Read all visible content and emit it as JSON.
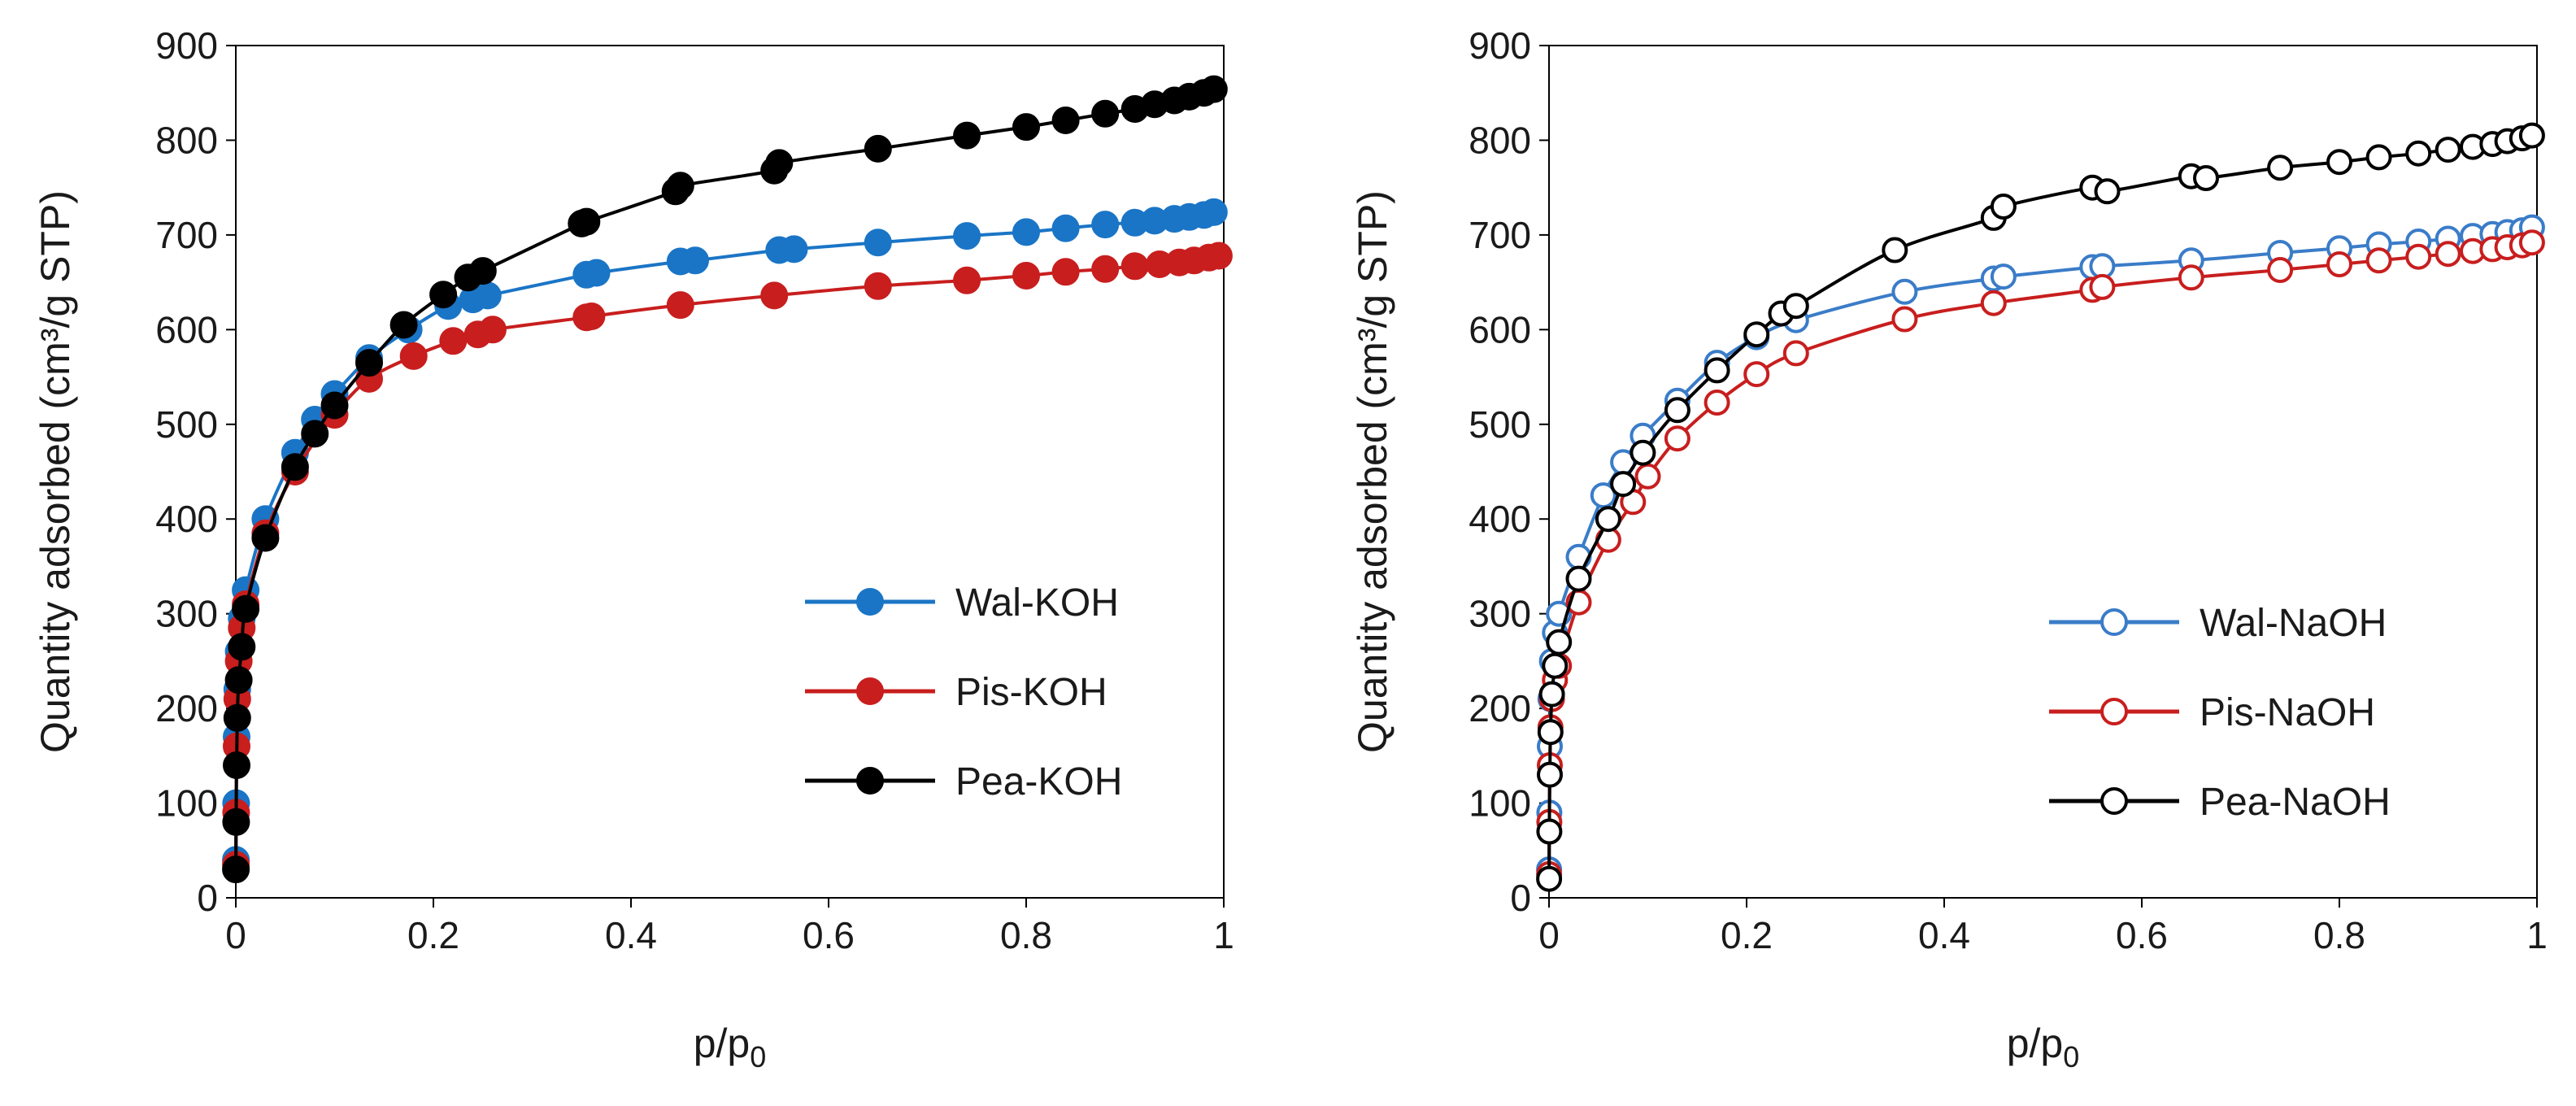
{
  "chart_data": [
    {
      "type": "line",
      "xlabel": "p/p0",
      "ylabel": "Quantity adsorbed (cm³/g STP)",
      "xlim": [
        0,
        1
      ],
      "ylim": [
        0,
        900
      ],
      "xticks": [
        "0",
        "0.2",
        "0.4",
        "0.6",
        "0.8",
        "1"
      ],
      "yticks": [
        "0",
        "100",
        "200",
        "300",
        "400",
        "500",
        "600",
        "700",
        "800",
        "900"
      ],
      "legend_position": "bottom-right",
      "marker": "filled-circle",
      "series": [
        {
          "name": "Wal-KOH",
          "color": "#1a75c6",
          "x": [
            0.0001,
            0.0003,
            0.0008,
            0.0015,
            0.003,
            0.006,
            0.01,
            0.03,
            0.06,
            0.08,
            0.1,
            0.135,
            0.175,
            0.215,
            0.24,
            0.255,
            0.355,
            0.365,
            0.45,
            0.465,
            0.55,
            0.565,
            0.65,
            0.74,
            0.8,
            0.84,
            0.88,
            0.91,
            0.93,
            0.95,
            0.965,
            0.98,
            0.99
          ],
          "y": [
            40,
            100,
            170,
            220,
            260,
            295,
            325,
            400,
            470,
            505,
            532,
            570,
            600,
            625,
            632,
            636,
            658,
            660,
            672,
            673,
            684,
            685,
            692,
            699,
            703,
            707,
            711,
            713,
            715,
            717,
            719,
            721,
            724
          ]
        },
        {
          "name": "Pis-KOH",
          "color": "#c81e1e",
          "x": [
            0.0001,
            0.0003,
            0.0008,
            0.0015,
            0.003,
            0.006,
            0.01,
            0.03,
            0.06,
            0.1,
            0.135,
            0.18,
            0.22,
            0.245,
            0.26,
            0.355,
            0.36,
            0.45,
            0.545,
            0.65,
            0.74,
            0.8,
            0.84,
            0.88,
            0.91,
            0.935,
            0.955,
            0.97,
            0.985,
            0.995
          ],
          "y": [
            35,
            90,
            160,
            210,
            250,
            285,
            310,
            385,
            450,
            510,
            548,
            572,
            588,
            595,
            600,
            613,
            614,
            626,
            636,
            646,
            652,
            657,
            661,
            664,
            667,
            669,
            671,
            673,
            676,
            678
          ]
        },
        {
          "name": "Pea-KOH",
          "color": "#000000",
          "x": [
            0.0001,
            0.0003,
            0.0008,
            0.0015,
            0.003,
            0.006,
            0.01,
            0.03,
            0.06,
            0.08,
            0.1,
            0.135,
            0.17,
            0.21,
            0.235,
            0.25,
            0.35,
            0.355,
            0.445,
            0.45,
            0.545,
            0.55,
            0.65,
            0.74,
            0.8,
            0.84,
            0.88,
            0.91,
            0.93,
            0.95,
            0.965,
            0.98,
            0.99
          ],
          "y": [
            30,
            80,
            140,
            190,
            230,
            265,
            305,
            380,
            455,
            490,
            520,
            565,
            605,
            637,
            655,
            662,
            712,
            714,
            746,
            752,
            768,
            776,
            791,
            805,
            814,
            821,
            828,
            833,
            838,
            842,
            846,
            850,
            854
          ]
        }
      ]
    },
    {
      "type": "line",
      "xlabel": "p/p0",
      "ylabel": "Quantity adsorbed (cm³/g STP)",
      "xlim": [
        0,
        1
      ],
      "ylim": [
        0,
        900
      ],
      "xticks": [
        "0",
        "0.2",
        "0.4",
        "0.6",
        "0.8",
        "1"
      ],
      "yticks": [
        "0",
        "100",
        "200",
        "300",
        "400",
        "500",
        "600",
        "700",
        "800",
        "900"
      ],
      "legend_position": "bottom-right",
      "marker": "open-circle",
      "series": [
        {
          "name": "Wal-NaOH",
          "color": "#3a7cc8",
          "x": [
            0.0001,
            0.0003,
            0.0008,
            0.0015,
            0.003,
            0.006,
            0.01,
            0.03,
            0.055,
            0.075,
            0.095,
            0.13,
            0.17,
            0.21,
            0.25,
            0.36,
            0.45,
            0.46,
            0.55,
            0.56,
            0.65,
            0.74,
            0.8,
            0.84,
            0.88,
            0.91,
            0.935,
            0.955,
            0.97,
            0.985,
            0.995
          ],
          "y": [
            30,
            90,
            160,
            210,
            250,
            280,
            300,
            360,
            425,
            460,
            488,
            525,
            565,
            592,
            610,
            640,
            654,
            656,
            666,
            667,
            673,
            681,
            686,
            690,
            693,
            696,
            699,
            701,
            703,
            705,
            708
          ]
        },
        {
          "name": "Pis-NaOH",
          "color": "#c81e1e",
          "x": [
            0.0001,
            0.0003,
            0.0008,
            0.0015,
            0.003,
            0.006,
            0.01,
            0.03,
            0.06,
            0.085,
            0.1,
            0.13,
            0.17,
            0.21,
            0.25,
            0.36,
            0.45,
            0.55,
            0.56,
            0.65,
            0.74,
            0.8,
            0.84,
            0.88,
            0.91,
            0.935,
            0.955,
            0.97,
            0.985,
            0.995
          ],
          "y": [
            25,
            80,
            140,
            180,
            210,
            230,
            245,
            312,
            378,
            418,
            445,
            485,
            523,
            553,
            575,
            611,
            628,
            642,
            645,
            655,
            663,
            669,
            673,
            677,
            680,
            683,
            685,
            687,
            689,
            692
          ]
        },
        {
          "name": "Pea-NaOH",
          "color": "#000000",
          "x": [
            0.0001,
            0.0003,
            0.0008,
            0.0015,
            0.003,
            0.006,
            0.01,
            0.03,
            0.06,
            0.075,
            0.095,
            0.13,
            0.17,
            0.21,
            0.235,
            0.25,
            0.35,
            0.45,
            0.46,
            0.55,
            0.565,
            0.65,
            0.665,
            0.74,
            0.8,
            0.84,
            0.88,
            0.91,
            0.935,
            0.955,
            0.97,
            0.985,
            0.995
          ],
          "y": [
            20,
            70,
            130,
            175,
            215,
            245,
            270,
            337,
            400,
            437,
            470,
            515,
            557,
            595,
            617,
            625,
            684,
            718,
            730,
            750,
            746,
            762,
            760,
            771,
            777,
            782,
            786,
            790,
            793,
            796,
            799,
            802,
            805
          ]
        }
      ]
    }
  ]
}
